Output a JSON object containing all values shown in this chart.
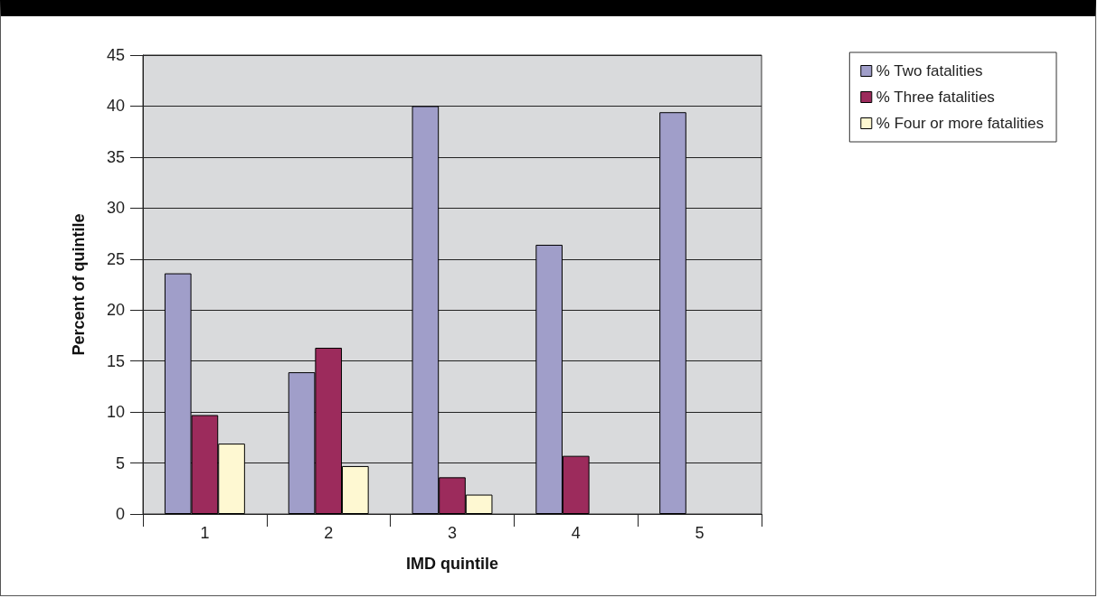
{
  "chart_data": {
    "type": "bar",
    "xlabel": "IMD quintile",
    "ylabel": "Percent of quintile",
    "categories": [
      "1",
      "2",
      "3",
      "4",
      "5"
    ],
    "series": [
      {
        "name": "% Two fatalities",
        "color": "#a09ec9",
        "values": [
          23.6,
          13.9,
          40.0,
          26.4,
          39.4
        ]
      },
      {
        "name": "% Three fatalities",
        "color": "#9c2b5c",
        "values": [
          9.7,
          16.3,
          3.6,
          5.7,
          null
        ]
      },
      {
        "name": "% Four or more fatalities",
        "color": "#fef8d2",
        "values": [
          6.9,
          4.7,
          1.9,
          null,
          null
        ]
      }
    ],
    "ylim": [
      0,
      45
    ],
    "yticks": [
      0,
      5,
      10,
      15,
      20,
      25,
      30,
      35,
      40,
      45
    ],
    "grid": "y",
    "legend": "top right"
  }
}
